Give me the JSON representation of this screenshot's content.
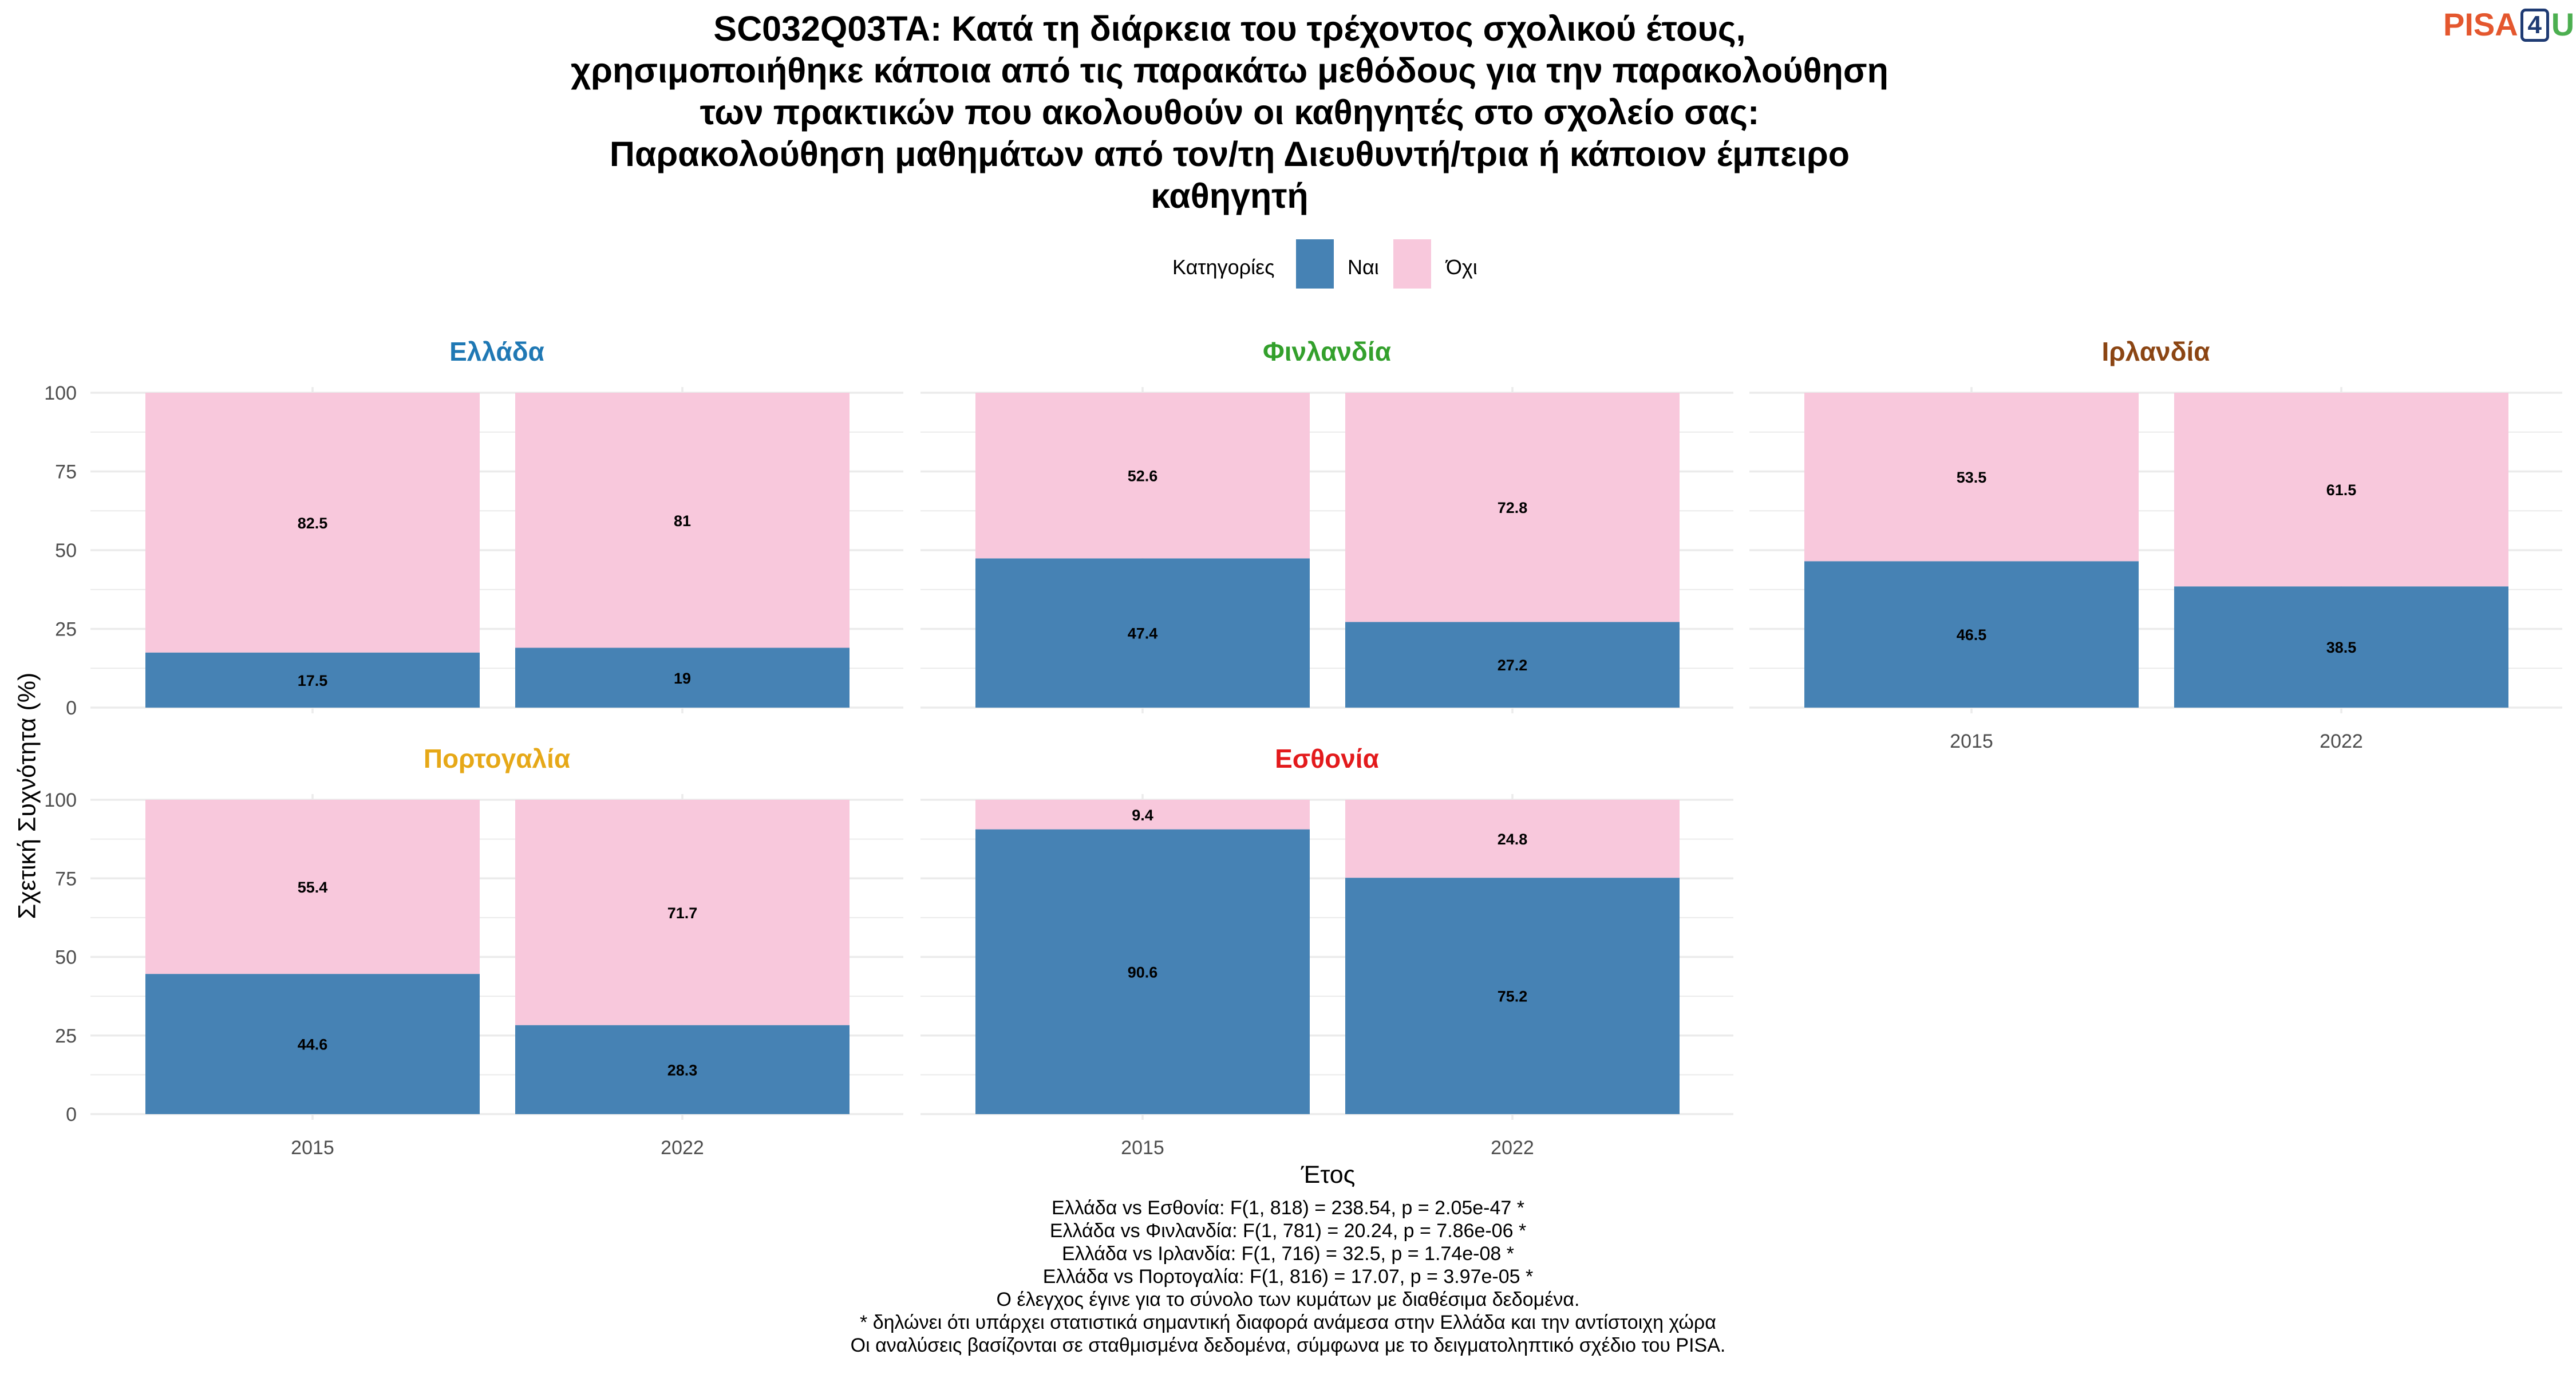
{
  "title_lines": [
    "SC032Q03TA: Κατά τη διάρκεια του τρέχοντος σχολικού έτους,",
    "χρησιμοποιήθηκε κάποια από τις παρακάτω μεθόδους για την παρακολούθηση",
    "των πρακτικών που ακολουθούν οι καθηγητές στο σχολείο σας:",
    "Παρακολούθηση μαθημάτων από τον/τη Διευθυντή/τρια ή κάποιον έμπειρο",
    "καθηγητή"
  ],
  "logo": {
    "part1": "PISA",
    "part2": "4",
    "part3": "U"
  },
  "legend": {
    "title": "Κατηγορίες",
    "items": [
      {
        "label": "Ναι",
        "color": "#4682B4"
      },
      {
        "label": "Όχι",
        "color": "#F8C8DC"
      }
    ]
  },
  "colors": {
    "yes": "#4682B4",
    "no": "#F8C8DC",
    "grid": "#ebebeb",
    "axis_text": "#4d4d4d"
  },
  "chart_data": {
    "type": "bar",
    "stacked": true,
    "xlabel": "Έτος",
    "ylabel": "Σχετική Συχνότητα (%)",
    "ylim": [
      0,
      100
    ],
    "yticks": [
      0,
      25,
      50,
      75,
      100
    ],
    "categories": [
      "2015",
      "2022"
    ],
    "panels": [
      {
        "name": "Ελλάδα",
        "title_color": "#1f78b4",
        "yes": [
          17.5,
          19
        ],
        "no": [
          82.5,
          81
        ],
        "yes_labels": [
          "17.5",
          "19"
        ],
        "no_labels": [
          "82.5",
          "81"
        ]
      },
      {
        "name": "Φινλανδία",
        "title_color": "#33a02c",
        "yes": [
          47.4,
          27.2
        ],
        "no": [
          52.6,
          72.8
        ],
        "yes_labels": [
          "47.4",
          "27.2"
        ],
        "no_labels": [
          "52.6",
          "72.8"
        ]
      },
      {
        "name": "Ιρλανδία",
        "title_color": "#8b4513",
        "yes": [
          46.5,
          38.5
        ],
        "no": [
          53.5,
          61.5
        ],
        "yes_labels": [
          "46.5",
          "38.5"
        ],
        "no_labels": [
          "53.5",
          "61.5"
        ]
      },
      {
        "name": "Πορτογαλία",
        "title_color": "#e6a817",
        "yes": [
          44.6,
          28.3
        ],
        "no": [
          55.4,
          71.7
        ],
        "yes_labels": [
          "44.6",
          "28.3"
        ],
        "no_labels": [
          "55.4",
          "71.7"
        ]
      },
      {
        "name": "Εσθονία",
        "title_color": "#e31a1c",
        "yes": [
          90.6,
          75.2
        ],
        "no": [
          9.4,
          24.8
        ],
        "yes_labels": [
          "90.6",
          "75.2"
        ],
        "no_labels": [
          "9.4",
          "24.8"
        ]
      }
    ]
  },
  "notes": [
    "Ελλάδα vs Εσθονία: F(1, 818) = 238.54, p = 2.05e-47 *",
    "Ελλάδα vs Φινλανδία: F(1, 781) = 20.24, p = 7.86e-06 *",
    "Ελλάδα vs Ιρλανδία: F(1, 716) = 32.5, p = 1.74e-08 *",
    "Ελλάδα vs Πορτογαλία: F(1, 816) = 17.07, p = 3.97e-05 *",
    "Ο έλεγχος έγινε για το σύνολο των κυμάτων με διαθέσιμα δεδομένα.",
    "* δηλώνει ότι υπάρχει στατιστικά σημαντική διαφορά ανάμεσα στην Ελλάδα και την αντίστοιχη χώρα",
    "Οι αναλύσεις βασίζονται σε σταθμισμένα δεδομένα, σύμφωνα με το δειγματοληπτικό σχέδιο του PISA."
  ]
}
